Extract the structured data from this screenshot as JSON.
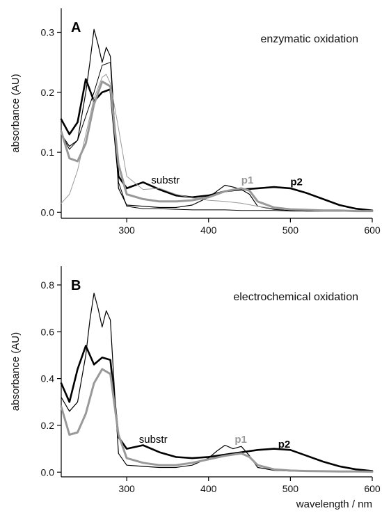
{
  "chart_data": [
    {
      "type": "line",
      "panel": "A",
      "title": "enzymatic oxidation",
      "xlabel": "",
      "ylabel": "absorbance (AU)",
      "xlim": [
        220,
        600
      ],
      "ylim": [
        -0.01,
        0.34
      ],
      "xticks": [
        300,
        400,
        500,
        600
      ],
      "yticks": [
        0.0,
        0.1,
        0.2,
        0.3
      ],
      "ytick_labels": [
        "0.0",
        "0.1",
        "0.2",
        "0.3"
      ],
      "grid": false,
      "annotations": [
        {
          "text": "substr",
          "x": 330,
          "y": 0.048,
          "color": "#000000",
          "bold": false
        },
        {
          "text": "p1",
          "x": 440,
          "y": 0.048,
          "color": "#999999",
          "bold": true
        },
        {
          "text": "p2",
          "x": 500,
          "y": 0.045,
          "color": "#000000",
          "bold": true
        }
      ],
      "series": [
        {
          "color": "#000000",
          "width": 2.6,
          "x": [
            220,
            230,
            240,
            250,
            260,
            270,
            280,
            290,
            300,
            320,
            340,
            360,
            380,
            400,
            420,
            440,
            460,
            480,
            500,
            520,
            540,
            560,
            580,
            600
          ],
          "y": [
            0.155,
            0.13,
            0.15,
            0.222,
            0.185,
            0.2,
            0.205,
            0.06,
            0.04,
            0.05,
            0.038,
            0.028,
            0.025,
            0.028,
            0.035,
            0.038,
            0.04,
            0.042,
            0.04,
            0.032,
            0.022,
            0.012,
            0.006,
            0.003
          ]
        },
        {
          "color": "#000000",
          "width": 1.2,
          "x": [
            220,
            230,
            240,
            250,
            255,
            260,
            265,
            270,
            275,
            280,
            285,
            290,
            300,
            320,
            340,
            360,
            380,
            400,
            410,
            420,
            430,
            440,
            450,
            460,
            480,
            500,
            520,
            540,
            560,
            580,
            600
          ],
          "y": [
            0.13,
            0.11,
            0.12,
            0.2,
            0.25,
            0.305,
            0.28,
            0.25,
            0.275,
            0.26,
            0.15,
            0.04,
            0.012,
            0.01,
            0.008,
            0.008,
            0.012,
            0.025,
            0.035,
            0.045,
            0.042,
            0.038,
            0.03,
            0.01,
            0.005,
            0.003,
            0.002,
            0.002,
            0.002,
            0.002,
            0.002
          ]
        },
        {
          "color": "#000000",
          "width": 1.0,
          "x": [
            220,
            230,
            240,
            250,
            260,
            270,
            280,
            290,
            300,
            320,
            340,
            360,
            380,
            400,
            420,
            440,
            460,
            480,
            500,
            520,
            540,
            560,
            580,
            600
          ],
          "y": [
            0.13,
            0.105,
            0.12,
            0.16,
            0.2,
            0.245,
            0.25,
            0.05,
            0.01,
            0.006,
            0.006,
            0.005,
            0.004,
            0.004,
            0.004,
            0.003,
            0.003,
            0.003,
            0.002,
            0.002,
            0.002,
            0.002,
            0.002,
            0.002
          ]
        },
        {
          "color": "#999999",
          "width": 3.0,
          "x": [
            220,
            230,
            240,
            250,
            260,
            270,
            280,
            290,
            300,
            320,
            340,
            360,
            380,
            400,
            420,
            440,
            450,
            460,
            480,
            500,
            520,
            540,
            560,
            580,
            600
          ],
          "y": [
            0.135,
            0.09,
            0.085,
            0.115,
            0.18,
            0.218,
            0.21,
            0.08,
            0.03,
            0.022,
            0.018,
            0.018,
            0.02,
            0.025,
            0.035,
            0.04,
            0.036,
            0.018,
            0.008,
            0.005,
            0.004,
            0.003,
            0.003,
            0.002,
            0.002
          ]
        },
        {
          "color": "#999999",
          "width": 1.0,
          "x": [
            220,
            230,
            240,
            250,
            260,
            270,
            275,
            280,
            290,
            300,
            320,
            340,
            360,
            380,
            400,
            420,
            440,
            460,
            480,
            500,
            520,
            540,
            560,
            580,
            600
          ],
          "y": [
            0.015,
            0.03,
            0.07,
            0.13,
            0.19,
            0.225,
            0.23,
            0.215,
            0.14,
            0.06,
            0.038,
            0.04,
            0.03,
            0.024,
            0.02,
            0.018,
            0.015,
            0.01,
            0.006,
            0.004,
            0.003,
            0.002,
            0.002,
            0.002,
            0.002
          ]
        }
      ]
    },
    {
      "type": "line",
      "panel": "B",
      "title": "electrochemical oxidation",
      "xlabel": "wavelength / nm",
      "ylabel": "absorbance (AU)",
      "xlim": [
        220,
        600
      ],
      "ylim": [
        -0.02,
        0.88
      ],
      "xticks": [
        300,
        400,
        500,
        600
      ],
      "yticks": [
        0.0,
        0.2,
        0.4,
        0.6,
        0.8
      ],
      "ytick_labels": [
        "0.0",
        "0.2",
        "0.4",
        "0.6",
        "0.8"
      ],
      "grid": false,
      "annotations": [
        {
          "text": "substr",
          "x": 315,
          "y": 0.125,
          "color": "#000000",
          "bold": false
        },
        {
          "text": "p1",
          "x": 432,
          "y": 0.125,
          "color": "#999999",
          "bold": true
        },
        {
          "text": "p2",
          "x": 485,
          "y": 0.105,
          "color": "#000000",
          "bold": true
        }
      ],
      "series": [
        {
          "color": "#000000",
          "width": 2.6,
          "x": [
            220,
            230,
            240,
            250,
            260,
            270,
            280,
            290,
            300,
            320,
            340,
            360,
            380,
            400,
            420,
            440,
            460,
            480,
            500,
            520,
            540,
            560,
            580,
            600
          ],
          "y": [
            0.38,
            0.3,
            0.44,
            0.54,
            0.46,
            0.49,
            0.48,
            0.15,
            0.1,
            0.115,
            0.085,
            0.065,
            0.06,
            0.065,
            0.075,
            0.085,
            0.095,
            0.1,
            0.095,
            0.07,
            0.045,
            0.025,
            0.012,
            0.005
          ]
        },
        {
          "color": "#000000",
          "width": 1.2,
          "x": [
            220,
            230,
            240,
            250,
            255,
            260,
            265,
            270,
            275,
            280,
            285,
            290,
            300,
            320,
            340,
            360,
            380,
            400,
            410,
            420,
            430,
            440,
            450,
            460,
            480,
            500,
            520,
            540,
            560,
            580,
            600
          ],
          "y": [
            0.32,
            0.26,
            0.3,
            0.5,
            0.65,
            0.765,
            0.7,
            0.62,
            0.69,
            0.65,
            0.35,
            0.08,
            0.03,
            0.025,
            0.02,
            0.02,
            0.03,
            0.06,
            0.09,
            0.115,
            0.1,
            0.11,
            0.07,
            0.02,
            0.008,
            0.005,
            0.004,
            0.003,
            0.003,
            0.003,
            0.003
          ]
        },
        {
          "color": "#999999",
          "width": 3.0,
          "x": [
            220,
            230,
            240,
            250,
            260,
            270,
            280,
            290,
            300,
            320,
            340,
            360,
            380,
            400,
            420,
            440,
            450,
            460,
            480,
            500,
            520,
            540,
            560,
            580,
            600
          ],
          "y": [
            0.28,
            0.16,
            0.17,
            0.25,
            0.38,
            0.44,
            0.42,
            0.16,
            0.06,
            0.04,
            0.03,
            0.03,
            0.04,
            0.055,
            0.07,
            0.08,
            0.065,
            0.03,
            0.012,
            0.007,
            0.005,
            0.004,
            0.003,
            0.003,
            0.002
          ]
        }
      ]
    }
  ]
}
